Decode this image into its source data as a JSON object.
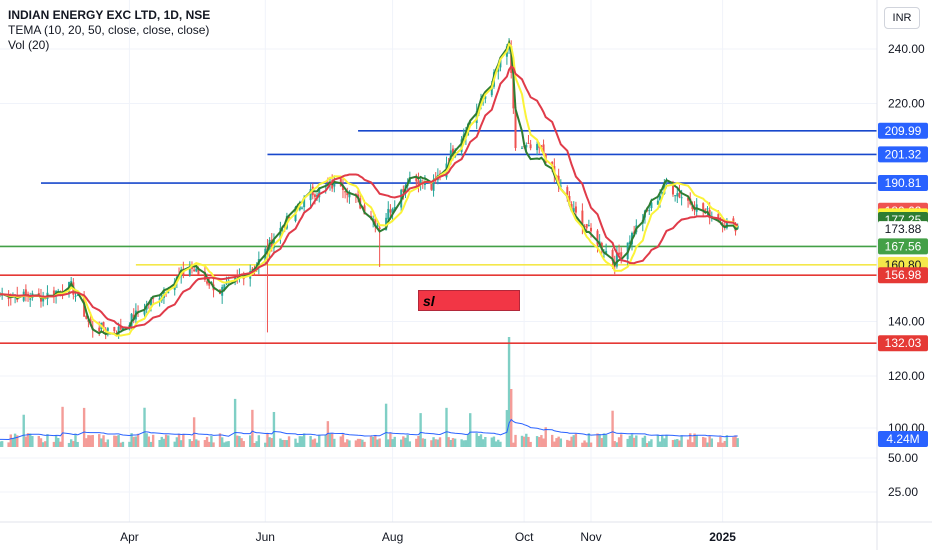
{
  "header": {
    "title": "INDIAN ENERGY EXC LTD, 1D, NSE",
    "indicator": "TEMA (10, 20, 50, close, close, close)",
    "volume": "Vol (20)",
    "currency": "INR"
  },
  "annotation": {
    "text": "sl"
  },
  "colors": {
    "up": "#26a69a",
    "down": "#ef5350",
    "tema10": "#2e7d32",
    "tema20": "#fbf339",
    "tema50": "#e03b49",
    "vol_ma": "#2962ff",
    "blue_level": "#1848cc",
    "green_level": "#43a047",
    "yellow_level": "#f4e84a",
    "red_level": "#e53935"
  },
  "chart_data": {
    "type": "candlestick",
    "y_ticks": [
      "240.00",
      "220.00",
      "140.00",
      "120.00",
      "100.00",
      "50.00",
      "25.00"
    ],
    "x_ticks": [
      "Apr",
      "Jun",
      "Aug",
      "Oct",
      "Nov",
      "2025"
    ],
    "levels": [
      {
        "value": 209.99,
        "label": "209.99",
        "color": "#1848cc",
        "start": "2024-07-16"
      },
      {
        "value": 201.32,
        "label": "201.32",
        "color": "#1848cc",
        "start": "2024-06-04"
      },
      {
        "value": 190.81,
        "label": "190.81",
        "color": "#1848cc",
        "start": "2024-02-20"
      },
      {
        "value": 167.56,
        "label": "167.56",
        "color": "#43a047",
        "start": "2024-02-01"
      },
      {
        "value": 160.8,
        "label": "160.80",
        "color": "#f4e84a",
        "start": "2024-04-04"
      },
      {
        "value": 156.98,
        "label": "156.98",
        "color": "#e53935",
        "start": "2024-02-01"
      },
      {
        "value": 132.03,
        "label": "132.03",
        "color": "#e53935",
        "start": "2024-02-01"
      }
    ],
    "price_labels": [
      {
        "value": 180.62,
        "label": "180.62",
        "bg": "#ef5350",
        "fg": "#ffffff"
      },
      {
        "value": 178.59,
        "label": "178.59",
        "bg": "#fbf339",
        "fg": "#131722"
      },
      {
        "value": 177.25,
        "label": "177.25",
        "bg": "#2e7d32",
        "fg": "#ffffff"
      },
      {
        "value": 173.88,
        "label": "173.88",
        "bg": "#ffffff",
        "fg": "#131722"
      }
    ],
    "volume_label": "4.24M",
    "anchors": [
      [
        "2024-02-01",
        150
      ],
      [
        "2024-02-20",
        149
      ],
      [
        "2024-03-05",
        153
      ],
      [
        "2024-03-14",
        138
      ],
      [
        "2024-03-27",
        137
      ],
      [
        "2024-04-15",
        150
      ],
      [
        "2024-04-29",
        160
      ],
      [
        "2024-05-13",
        151
      ],
      [
        "2024-05-30",
        161
      ],
      [
        "2024-06-10",
        174
      ],
      [
        "2024-06-24",
        187
      ],
      [
        "2024-07-08",
        191
      ],
      [
        "2024-07-18",
        182
      ],
      [
        "2024-07-26",
        175
      ],
      [
        "2024-08-09",
        193
      ],
      [
        "2024-08-19",
        189
      ],
      [
        "2024-08-30",
        204
      ],
      [
        "2024-09-13",
        223
      ],
      [
        "2024-09-24",
        242
      ],
      [
        "2024-09-27",
        204
      ],
      [
        "2024-10-09",
        203
      ],
      [
        "2024-10-23",
        181
      ],
      [
        "2024-11-12",
        162
      ],
      [
        "2024-11-25",
        178
      ],
      [
        "2024-12-06",
        190
      ],
      [
        "2024-12-20",
        182
      ],
      [
        "2025-01-06",
        175
      ]
    ]
  }
}
